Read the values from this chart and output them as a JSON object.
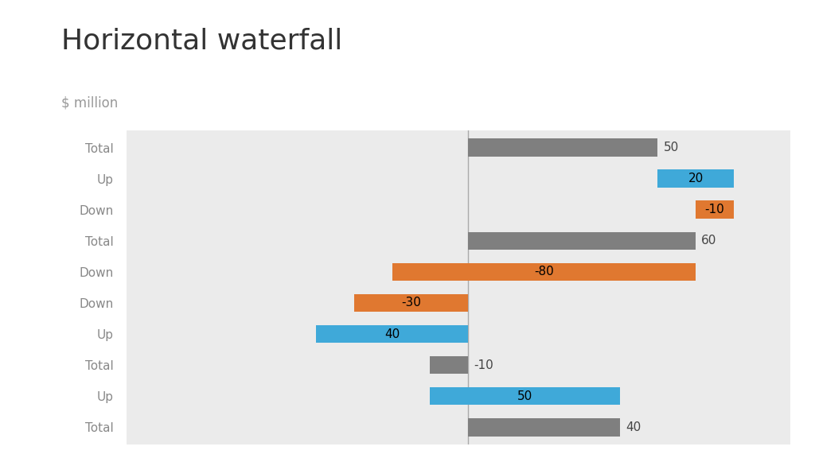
{
  "title": "Horizontal waterfall",
  "subtitle": "$ million",
  "categories": [
    "Total",
    "Up",
    "Down",
    "Total",
    "Down",
    "Down",
    "Up",
    "Total",
    "Up",
    "Total"
  ],
  "bar_starts": [
    0,
    50,
    60,
    0,
    -20,
    -30,
    -40,
    -10,
    -10,
    0
  ],
  "bar_widths": [
    50,
    20,
    10,
    60,
    80,
    30,
    40,
    10,
    50,
    40
  ],
  "bar_colors": [
    "#7F7F7F",
    "#3FA9D9",
    "#E07830",
    "#7F7F7F",
    "#E07830",
    "#E07830",
    "#3FA9D9",
    "#7F7F7F",
    "#3FA9D9",
    "#7F7F7F"
  ],
  "label_inside": [
    false,
    true,
    true,
    false,
    true,
    true,
    true,
    false,
    true,
    false
  ],
  "label_values": [
    "50",
    "20",
    "-10",
    "60",
    "-80",
    "-30",
    "40",
    "-10",
    "50",
    "40"
  ],
  "xlim": [
    -90,
    85
  ],
  "vline_x": 0,
  "chart_bg": "#EBEBEB",
  "outer_bg": "#FFFFFF",
  "title_fontsize": 26,
  "subtitle_fontsize": 12,
  "bar_height": 0.58,
  "label_fontsize": 11,
  "ytick_fontsize": 11,
  "ytick_color": "#888888",
  "outside_label_color": "#444444",
  "inside_label_color": "#000000"
}
